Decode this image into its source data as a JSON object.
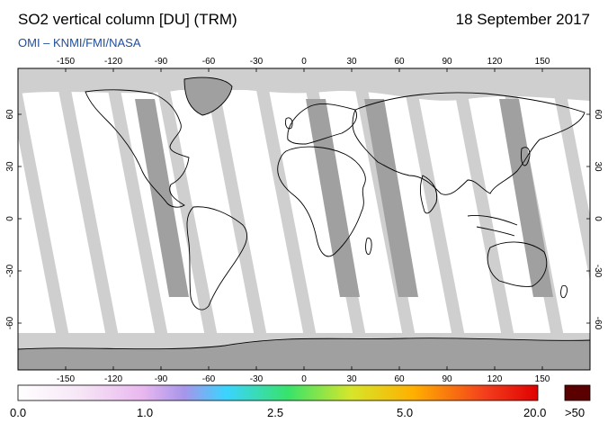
{
  "header": {
    "title": "SO2 vertical column [DU] (TRM)",
    "date": "18 September 2017",
    "credit": "OMI  –  KNMI/FMI/NASA"
  },
  "map": {
    "lon_ticks": [
      "-150",
      "-120",
      "-90",
      "-60",
      "-30",
      "0",
      "30",
      "60",
      "90",
      "120",
      "150"
    ],
    "lat_ticks_left": [
      "60",
      "30",
      "0",
      "-30",
      "-60"
    ],
    "lat_ticks_right": [
      "60",
      "30",
      "0",
      "-30",
      "-60"
    ]
  },
  "colorbar": {
    "labels": [
      "0.0",
      "1.0",
      "2.5",
      "5.0",
      "20.0"
    ],
    "overflow_label": ">50",
    "colors": [
      "#ffffff",
      "#f4d9f4",
      "#e2a6ec",
      "#8f86e6",
      "#39d8ff",
      "#36e36a",
      "#d6e62a",
      "#ffb000",
      "#f33d1c",
      "#e00000"
    ],
    "overflow_color": "#5a0000"
  },
  "colors": {
    "background_white": "#ffffff",
    "no_data_gray": "#cfcfcf",
    "overpass_dark_gray": "#a0a0a0",
    "credit_blue": "#1f4e9a"
  }
}
